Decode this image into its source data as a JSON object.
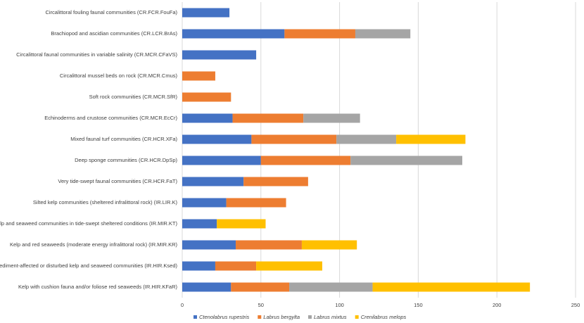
{
  "chart_data": {
    "type": "stacked-bar-horizontal",
    "categories": [
      "Circalittoral fouling faunal communities (CR.FCR.FouFa)",
      "Brachiopod and ascidian communities (CR.LCR.BrAs)",
      "Circalittoral faunal communities in variable salinity (CR.MCR.CFaVS)",
      "Circalittoral mussel beds on rock (CR.MCR.Cmus)",
      "Soft rock communities (CR.MCR.SfR)",
      "Echinoderms and crustose communities (CR.MCR.EcCr)",
      "Mixed faunal turf communities (CR.HCR.XFa)",
      "Deep sponge communities (CR.HCR.DpSp)",
      "Very tide-swept faunal communities (CR.HCR.FaT)",
      "Silted kelp communities (sheltered infralittoral rock) (IR.LIR.K)",
      "Kelp and seaweed communities in tide-swept sheltered conditions (IR.MIR.KT)",
      "Kelp and red seaweeds (moderate energy infralittoral rock) (IR.MIR.KR)",
      "Sediment-affected or disturbed kelp and seaweed communities (IR.HIR.Ksed)",
      "Kelp with cushion fauna and/or foliose red seaweeds (IR.HIR.KFaR)"
    ],
    "series": [
      {
        "name": "Ctenolabrus rupestris",
        "color": "#4472c4",
        "values": [
          30,
          65,
          47,
          null,
          null,
          32,
          44,
          50,
          39,
          28,
          22,
          34,
          21,
          31
        ]
      },
      {
        "name": "Labrus bergylta",
        "color": "#ed7d31",
        "values": [
          null,
          45,
          null,
          21,
          31,
          45,
          54,
          57,
          41,
          38,
          null,
          42,
          26,
          37
        ]
      },
      {
        "name": "Labrus mixtus",
        "color": "#a5a5a5",
        "values": [
          null,
          35,
          null,
          null,
          null,
          36,
          38,
          71,
          null,
          null,
          null,
          null,
          null,
          53
        ]
      },
      {
        "name": "Crenilabrus melops",
        "color": "#ffc000",
        "values": [
          null,
          null,
          null,
          null,
          null,
          null,
          44,
          null,
          null,
          null,
          31,
          35,
          42,
          100
        ]
      }
    ],
    "xlim": [
      0,
      250
    ],
    "xticks": [
      0,
      50,
      100,
      150,
      200,
      250
    ],
    "grid": true,
    "legend": "bottom"
  }
}
